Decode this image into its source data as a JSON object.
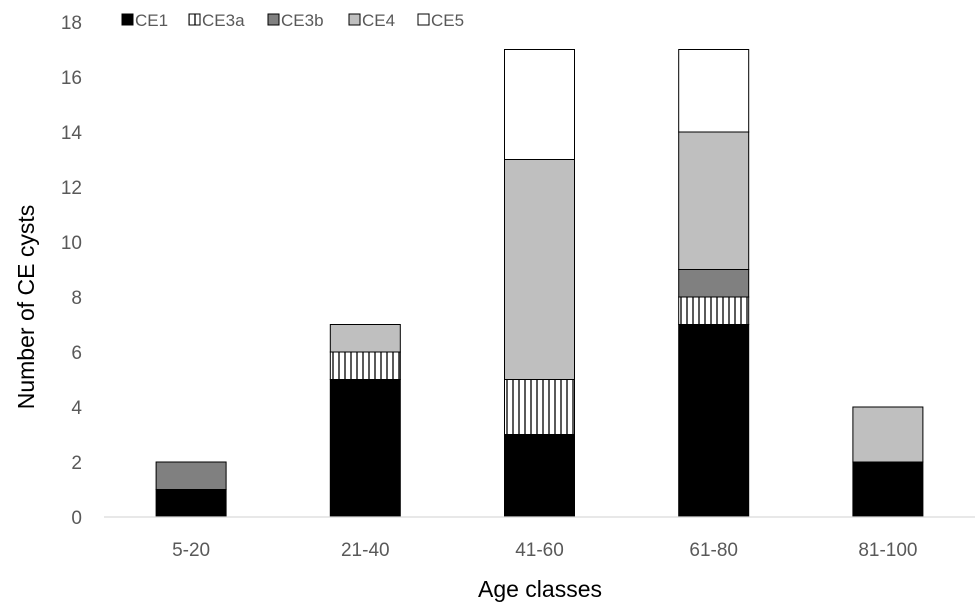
{
  "chart_data": {
    "type": "bar",
    "stacked": true,
    "title": "",
    "xlabel": "Age classes",
    "ylabel": "Number of CE cysts",
    "ylim": [
      0,
      18
    ],
    "ytick_step": 2,
    "yticks": [
      "0",
      "2",
      "4",
      "6",
      "8",
      "10",
      "12",
      "14",
      "16",
      "18"
    ],
    "grid": false,
    "legend_position": "top-left",
    "categories": [
      "5-20",
      "21-40",
      "41-60",
      "61-80",
      "81-100"
    ],
    "series": [
      {
        "name": "CE1",
        "values": [
          1,
          5,
          3,
          7,
          2
        ],
        "color": "#000000",
        "pattern": "solid"
      },
      {
        "name": "CE3a",
        "values": [
          0,
          1,
          2,
          1,
          0
        ],
        "color": "#ffffff",
        "pattern": "vertical-stripes"
      },
      {
        "name": "CE3b",
        "values": [
          1,
          0,
          0,
          1,
          0
        ],
        "color": "#808080",
        "pattern": "solid"
      },
      {
        "name": "CE4",
        "values": [
          0,
          1,
          8,
          5,
          2
        ],
        "color": "#bfbfbf",
        "pattern": "solid"
      },
      {
        "name": "CE5",
        "values": [
          0,
          0,
          4,
          3,
          0
        ],
        "color": "#ffffff",
        "pattern": "solid"
      }
    ]
  }
}
